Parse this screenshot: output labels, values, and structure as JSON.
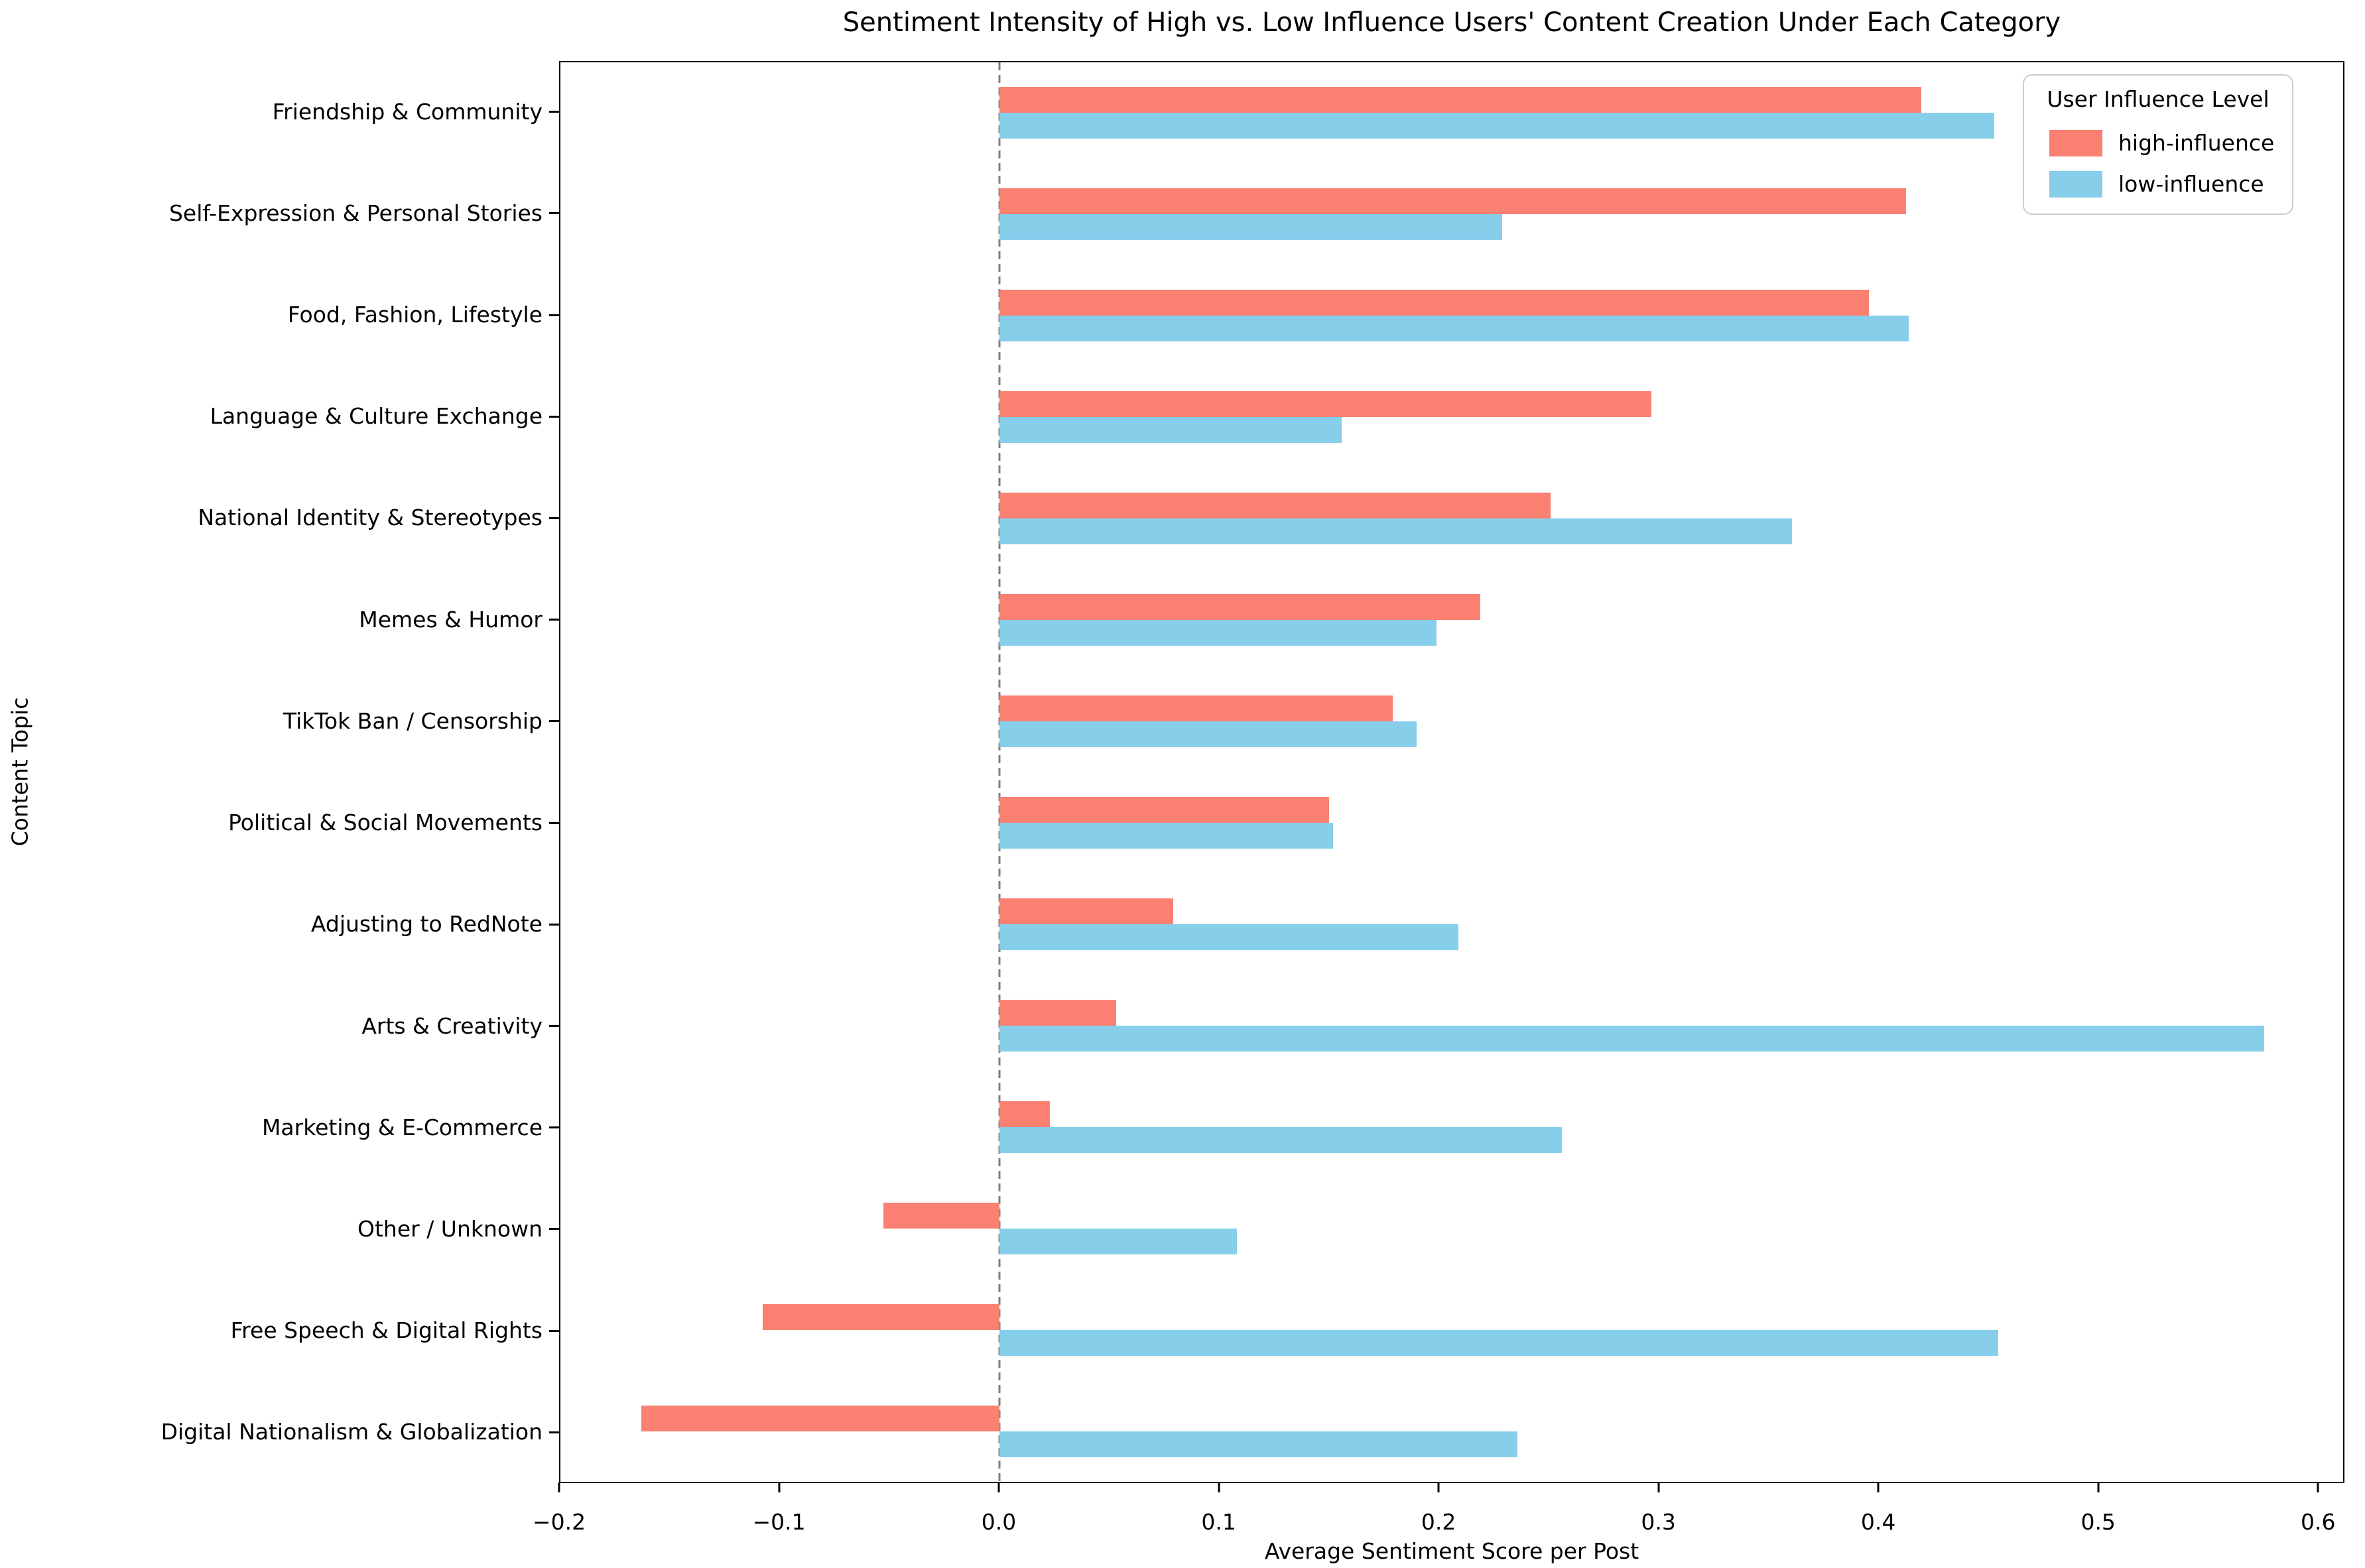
{
  "chart_data": {
    "type": "bar",
    "orientation": "horizontal",
    "title": "Sentiment Intensity of High vs. Low Influence Users' Content Creation Under Each Category",
    "xlabel": "Average Sentiment Score per Post",
    "ylabel": "Content Topic",
    "categories": [
      "Friendship & Community",
      "Self-Expression & Personal Stories",
      "Food, Fashion, Lifestyle",
      "Language & Culture Exchange",
      "National Identity & Stereotypes",
      "Memes & Humor",
      "TikTok Ban / Censorship",
      "Political & Social Movements",
      "Adjusting to RedNote",
      "Arts & Creativity",
      "Marketing & E-Commerce",
      "Other / Unknown",
      "Free Speech & Digital Rights",
      "Digital Nationalism & Globalization"
    ],
    "series": [
      {
        "name": "high-influence",
        "color": "#FA8072",
        "values": [
          0.42,
          0.413,
          0.396,
          0.297,
          0.251,
          0.219,
          0.179,
          0.15,
          0.079,
          0.053,
          0.023,
          -0.053,
          -0.108,
          -0.163
        ]
      },
      {
        "name": "low-influence",
        "color": "#87CEEB",
        "values": [
          0.453,
          0.229,
          0.414,
          0.156,
          0.361,
          0.199,
          0.19,
          0.152,
          0.209,
          0.576,
          0.256,
          0.108,
          0.455,
          0.236
        ]
      }
    ],
    "xlim": [
      -0.2,
      0.612
    ],
    "xtick_values": [
      -0.2,
      -0.1,
      0.0,
      0.1,
      0.2,
      0.3,
      0.4,
      0.5,
      0.6
    ],
    "xtick_labels": [
      "−0.2",
      "−0.1",
      "0.0",
      "0.1",
      "0.2",
      "0.3",
      "0.4",
      "0.5",
      "0.6"
    ],
    "zero_line": {
      "value": 0.0,
      "color": "#7f7f7f",
      "style": "dashed"
    },
    "grid": false,
    "legend": {
      "title": "User Influence Level",
      "position": "upper-right"
    }
  }
}
